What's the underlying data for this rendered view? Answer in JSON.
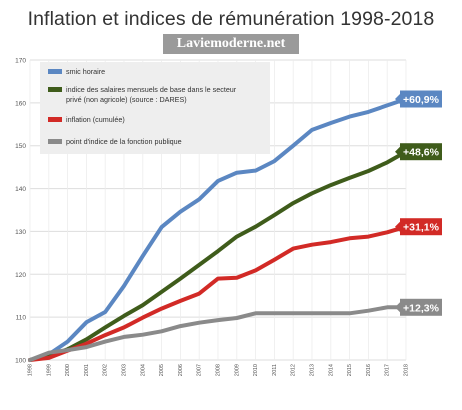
{
  "title": "Inflation et indices de rémunération 1998-2018",
  "watermark": "Laviemoderne.net",
  "chart_data": {
    "type": "line",
    "x": [
      "1998",
      "1999",
      "2000",
      "2001",
      "2002",
      "2003",
      "2004",
      "2005",
      "2006",
      "2007",
      "2008",
      "2009",
      "2010",
      "2011",
      "2012",
      "2013",
      "2014",
      "2015",
      "2016",
      "2017",
      "2018"
    ],
    "ylim": [
      100,
      170
    ],
    "yticks": [
      100,
      110,
      120,
      130,
      140,
      150,
      160,
      170
    ],
    "grid": true,
    "legend_position": "top-left",
    "series": [
      {
        "name": "smic horaire",
        "color": "#5b87c2",
        "values": [
          100,
          101.3,
          104.3,
          108.8,
          111.2,
          117.3,
          124.3,
          131,
          134.6,
          137.5,
          141.8,
          143.7,
          144.2,
          146.4,
          150,
          153.7,
          155.3,
          156.8,
          157.9,
          159.4,
          160.9
        ],
        "end_label": "+60,9%"
      },
      {
        "name": "indice des salaires mensuels de base dans le secteur privé (non agricole) (source : DARES)",
        "color": "#3f5c1b",
        "values": [
          100,
          100.9,
          102.5,
          104.8,
          107.6,
          110.3,
          112.8,
          115.9,
          119,
          122.2,
          125.4,
          128.8,
          131.1,
          133.8,
          136.6,
          138.9,
          140.8,
          142.5,
          144.1,
          146.1,
          148.6
        ],
        "end_label": "+48,6%"
      },
      {
        "name": "inflation (cumulée)",
        "color": "#d22a26",
        "values": [
          100,
          100.5,
          102.2,
          103.8,
          105.8,
          107.6,
          109.9,
          112,
          113.8,
          115.5,
          119,
          119.2,
          120.9,
          123.4,
          126,
          126.9,
          127.5,
          128.4,
          128.8,
          129.8,
          131.1
        ],
        "end_label": "+31,1%"
      },
      {
        "name": "point d'indice de la fonction publique",
        "color": "#8a8a8a",
        "values": [
          100,
          101.7,
          102.3,
          103,
          104.3,
          105.4,
          105.9,
          106.7,
          107.9,
          108.7,
          109.3,
          109.8,
          110.9,
          110.9,
          110.9,
          110.9,
          110.9,
          110.9,
          111.5,
          112.3,
          112.3
        ],
        "end_label": "+12,3%"
      }
    ]
  }
}
